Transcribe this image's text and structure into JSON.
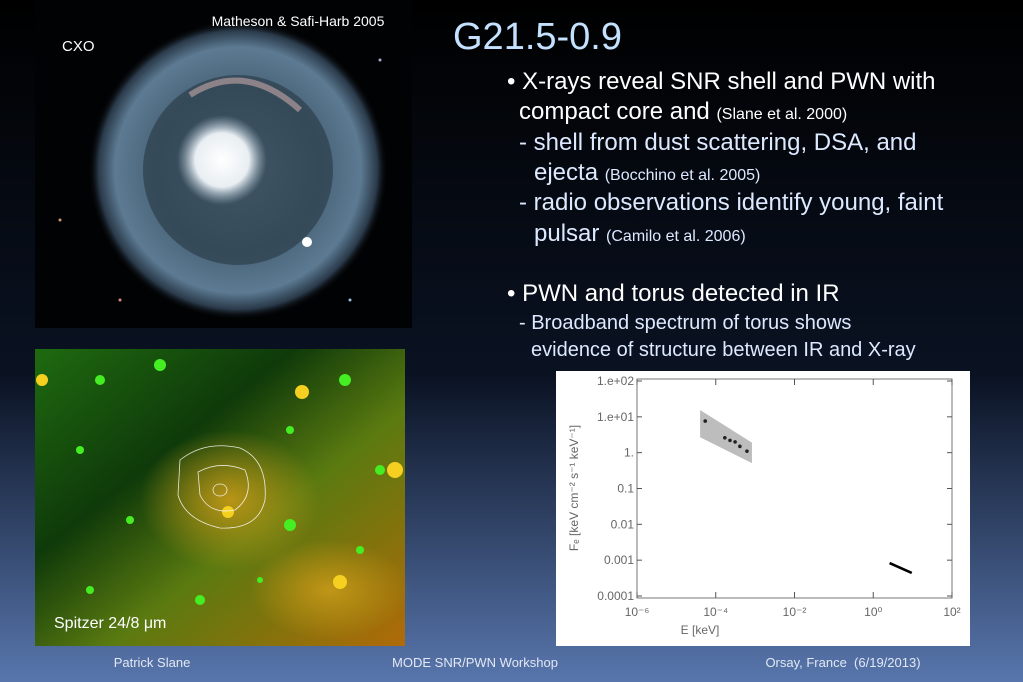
{
  "title": "G21.5-0.9",
  "cxo_image": {
    "credit": "Matheson & Safi-Harb 2005",
    "label": "CXO"
  },
  "spitzer_image": {
    "label": "Spitzer 24/8 μm"
  },
  "bullets": [
    {
      "text": "• X-rays reveal SNR shell and PWN with"
    },
    {
      "text": "compact core and",
      "ref": "(Slane et al. 2000)"
    },
    {
      "text": "- shell from dust scattering, DSA, and"
    },
    {
      "text": "ejecta",
      "ref": "(Bocchino et al. 2005)"
    },
    {
      "text": "- radio observations identify young, faint"
    },
    {
      "text": "pulsar",
      "ref": "(Camilo et al. 2006)"
    },
    {
      "text": "• PWN and torus detected in IR"
    },
    {
      "text": "- Broadband spectrum of torus shows"
    },
    {
      "text": "evidence of structure between IR and X-ray"
    }
  ],
  "footer": {
    "left": "Patrick Slane",
    "center": "MODE SNR/PWN Workshop",
    "right": "Orsay, France  (6/19/2013)"
  },
  "chart_data": {
    "type": "scatter",
    "xlabel": "E [keV]",
    "ylabel": "Fₑ [keV cm⁻² s⁻¹ keV⁻¹]",
    "xscale": "log",
    "yscale": "log",
    "xlim": [
      1e-06,
      100
    ],
    "ylim": [
      0.0001,
      100
    ],
    "xticks": [
      {
        "value": 1e-06,
        "label": "10⁻⁶"
      },
      {
        "value": 0.0001,
        "label": "10⁻⁴"
      },
      {
        "value": 0.01,
        "label": "10⁻²"
      },
      {
        "value": 1,
        "label": "10⁰"
      },
      {
        "value": 100,
        "label": "10²"
      }
    ],
    "yticks": [
      {
        "value": 100,
        "label": "1.e+02"
      },
      {
        "value": 10,
        "label": "1.e+01"
      },
      {
        "value": 1,
        "label": "1."
      },
      0.1,
      0.01,
      0.001,
      0.0001
    ],
    "band": {
      "x": [
        4e-05,
        0.00083
      ],
      "upper": [
        15.5,
        1.9
      ],
      "lower": [
        2.7,
        0.51
      ],
      "color": "#bdbdbd"
    },
    "series": [
      {
        "mode": "markers",
        "color": "#222222",
        "x": [
          5.4e-05,
          0.00017,
          0.00023,
          0.00031,
          0.00041,
          0.00062
        ],
        "values": [
          7.6,
          2.6,
          2.2,
          2.0,
          1.5,
          1.1
        ]
      },
      {
        "mode": "line",
        "color": "#000000",
        "x": [
          2.6,
          9.5
        ],
        "values": [
          0.00083,
          0.00044
        ]
      }
    ]
  }
}
